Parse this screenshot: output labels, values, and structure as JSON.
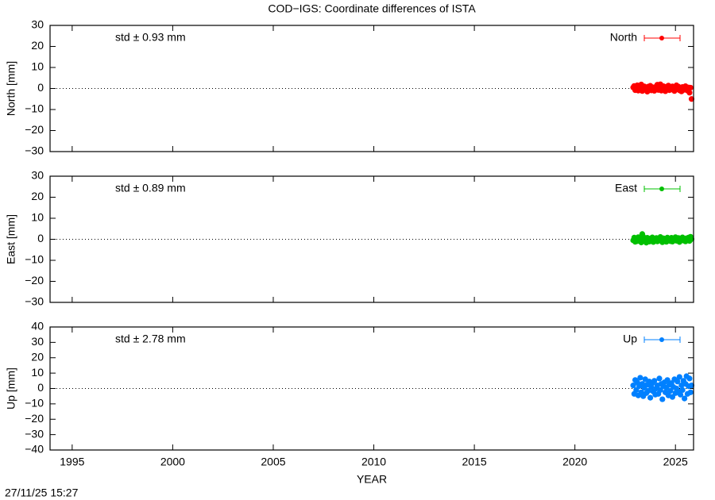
{
  "title": "COD−IGS: Coordinate differences of ISTA",
  "timestamp": "27/11/25 15:27",
  "chart_data": [
    {
      "type": "scatter",
      "ylabel": "North [mm]",
      "annotation": "std ± 0.93 mm",
      "xlim": [
        1993.9,
        2025.9
      ],
      "xticks": [
        1995,
        2000,
        2005,
        2010,
        2015,
        2020,
        2025
      ],
      "ylim": [
        -30,
        30
      ],
      "yticks": [
        {
          "value": -30,
          "label": "−30"
        },
        {
          "value": -20,
          "label": "−20"
        },
        {
          "value": -10,
          "label": "−10"
        },
        0,
        10,
        20,
        30
      ],
      "zero_line": true,
      "legend": "top-right",
      "series": [
        {
          "name": "North",
          "color": "#ff0000",
          "x": [
            2022.9,
            2022.95,
            2023.0,
            2023.05,
            2023.1,
            2023.15,
            2023.2,
            2023.25,
            2023.3,
            2023.35,
            2023.4,
            2023.45,
            2023.5,
            2023.55,
            2023.6,
            2023.65,
            2023.7,
            2023.75,
            2023.8,
            2023.85,
            2023.9,
            2023.95,
            2024.0,
            2024.05,
            2024.1,
            2024.15,
            2024.2,
            2024.25,
            2024.3,
            2024.35,
            2024.4,
            2024.45,
            2024.5,
            2024.55,
            2024.6,
            2024.65,
            2024.7,
            2024.75,
            2024.8,
            2024.85,
            2024.9,
            2024.95,
            2025.0,
            2025.05,
            2025.1,
            2025.15,
            2025.2,
            2025.25,
            2025.3,
            2025.35,
            2025.4,
            2025.45,
            2025.5,
            2025.55,
            2025.6,
            2025.65,
            2025.7,
            2025.75,
            2025.8
          ],
          "values": [
            0.5,
            1.2,
            -0.8,
            0.3,
            1.5,
            -1.0,
            0.8,
            -0.5,
            1.9,
            -1.2,
            0.4,
            1.0,
            -0.6,
            0.2,
            -1.5,
            0.9,
            -0.3,
            1.3,
            -0.9,
            0.6,
            0.1,
            -1.1,
            0.7,
            -0.4,
            1.8,
            -0.7,
            0.3,
            2.0,
            -1.0,
            0.5,
            1.1,
            -0.2,
            -1.3,
            0.8,
            0.0,
            1.4,
            -0.8,
            0.4,
            -0.5,
            1.0,
            0.2,
            -1.2,
            0.6,
            1.5,
            -0.3,
            0.9,
            -0.9,
            0.1,
            -1.4,
            0.7,
            0.3,
            -0.6,
            1.1,
            -0.2,
            -1.0,
            0.5,
            -2.0,
            0.4,
            -5.0
          ]
        }
      ]
    },
    {
      "type": "scatter",
      "ylabel": "East [mm]",
      "annotation": "std ± 0.89 mm",
      "xlim": [
        1993.9,
        2025.9
      ],
      "xticks": [
        1995,
        2000,
        2005,
        2010,
        2015,
        2020,
        2025
      ],
      "ylim": [
        -30,
        30
      ],
      "yticks": [
        {
          "value": -30,
          "label": "−30"
        },
        {
          "value": -20,
          "label": "−20"
        },
        {
          "value": -10,
          "label": "−10"
        },
        0,
        10,
        20,
        30
      ],
      "zero_line": true,
      "legend": "top-right",
      "series": [
        {
          "name": "East",
          "color": "#00c000",
          "x": [
            2022.9,
            2022.95,
            2023.0,
            2023.05,
            2023.1,
            2023.15,
            2023.2,
            2023.25,
            2023.3,
            2023.35,
            2023.4,
            2023.45,
            2023.5,
            2023.55,
            2023.6,
            2023.65,
            2023.7,
            2023.75,
            2023.8,
            2023.85,
            2023.9,
            2023.95,
            2024.0,
            2024.05,
            2024.1,
            2024.15,
            2024.2,
            2024.25,
            2024.3,
            2024.35,
            2024.4,
            2024.45,
            2024.5,
            2024.55,
            2024.6,
            2024.65,
            2024.7,
            2024.75,
            2024.8,
            2024.85,
            2024.9,
            2024.95,
            2025.0,
            2025.05,
            2025.1,
            2025.15,
            2025.2,
            2025.25,
            2025.3,
            2025.35,
            2025.4,
            2025.45,
            2025.5,
            2025.55,
            2025.6,
            2025.65,
            2025.7,
            2025.75,
            2025.8
          ],
          "values": [
            -0.5,
            0.8,
            -1.2,
            0.3,
            -0.9,
            1.0,
            -0.4,
            0.6,
            -1.5,
            2.5,
            1.2,
            -0.8,
            0.2,
            -1.6,
            0.7,
            -0.3,
            -1.1,
            0.4,
            -0.7,
            0.9,
            -1.3,
            0.1,
            -0.5,
            0.6,
            -1.0,
            0.3,
            -0.2,
            1.1,
            -0.8,
            -1.4,
            0.5,
            -0.6,
            0.2,
            -1.2,
            0.8,
            -0.4,
            0.0,
            -0.9,
            0.7,
            -1.1,
            0.3,
            -0.5,
            1.0,
            -0.7,
            -0.2,
            0.6,
            -1.3,
            0.4,
            -0.1,
            0.9,
            -0.6,
            0.2,
            -1.0,
            0.5,
            -0.3,
            0.8,
            -0.8,
            1.2,
            0.1
          ]
        }
      ]
    },
    {
      "type": "scatter",
      "ylabel": "Up [mm]",
      "annotation": "std ± 2.78 mm",
      "xlabel": "YEAR",
      "xlim": [
        1993.9,
        2025.9
      ],
      "xticks": [
        1995,
        2000,
        2005,
        2010,
        2015,
        2020,
        2025
      ],
      "ylim": [
        -40,
        40
      ],
      "yticks": [
        {
          "value": -40,
          "label": "−40"
        },
        {
          "value": -30,
          "label": "−30"
        },
        {
          "value": -20,
          "label": "−20"
        },
        {
          "value": -10,
          "label": "−10"
        },
        0,
        10,
        20,
        30,
        40
      ],
      "zero_line": true,
      "legend": "top-right",
      "series": [
        {
          "name": "Up",
          "color": "#0080ff",
          "x": [
            2022.9,
            2022.95,
            2023.0,
            2023.05,
            2023.1,
            2023.15,
            2023.2,
            2023.25,
            2023.3,
            2023.35,
            2023.4,
            2023.45,
            2023.5,
            2023.55,
            2023.6,
            2023.65,
            2023.7,
            2023.75,
            2023.8,
            2023.85,
            2023.9,
            2023.95,
            2024.0,
            2024.05,
            2024.1,
            2024.15,
            2024.2,
            2024.25,
            2024.3,
            2024.35,
            2024.4,
            2024.45,
            2024.5,
            2024.55,
            2024.6,
            2024.65,
            2024.7,
            2024.75,
            2024.8,
            2024.85,
            2024.9,
            2024.95,
            2025.0,
            2025.05,
            2025.1,
            2025.15,
            2025.2,
            2025.25,
            2025.3,
            2025.35,
            2025.4,
            2025.45,
            2025.5,
            2025.55,
            2025.6,
            2025.65,
            2025.7,
            2025.75,
            2025.8
          ],
          "values": [
            2.0,
            -3.5,
            5.5,
            -1.0,
            4.0,
            -4.5,
            1.5,
            7.0,
            -2.5,
            3.0,
            -5.0,
            0.5,
            6.0,
            -3.0,
            2.5,
            -1.5,
            4.5,
            -6.0,
            1.0,
            3.5,
            -2.0,
            5.0,
            -4.0,
            0.0,
            2.0,
            -3.5,
            6.5,
            -1.0,
            3.0,
            -7.0,
            1.5,
            4.0,
            -2.5,
            0.5,
            5.5,
            -4.5,
            2.5,
            -1.5,
            3.5,
            -5.5,
            1.0,
            6.0,
            -3.0,
            0.0,
            4.5,
            -2.0,
            7.5,
            -4.0,
            2.0,
            -1.0,
            5.0,
            -6.5,
            3.0,
            8.0,
            -3.5,
            1.5,
            6.5,
            -2.5,
            2.0
          ]
        }
      ]
    }
  ]
}
